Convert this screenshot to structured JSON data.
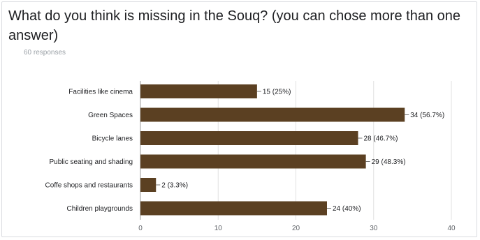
{
  "question": {
    "title": "What do you think is missing in the Souq? (you can chose more than one answer)",
    "responses": "60 responses"
  },
  "chart_data": {
    "type": "bar",
    "orientation": "horizontal",
    "categories": [
      "Facilities like cinema",
      "Green Spaces",
      "Bicycle lanes",
      "Public seating and shading",
      "Coffe shops and restaurants",
      "Children playgrounds"
    ],
    "values": [
      15,
      34,
      28,
      29,
      2,
      24
    ],
    "value_labels": [
      "15 (25%)",
      "34 (56.7%)",
      "28 (46.7%)",
      "29 (48.3%)",
      "2 (3.3%)",
      "24 (40%)"
    ],
    "xlim": [
      0,
      40
    ],
    "xticks": [
      0,
      10,
      20,
      30,
      40
    ],
    "grid": true,
    "bar_color": "#5b4022"
  }
}
